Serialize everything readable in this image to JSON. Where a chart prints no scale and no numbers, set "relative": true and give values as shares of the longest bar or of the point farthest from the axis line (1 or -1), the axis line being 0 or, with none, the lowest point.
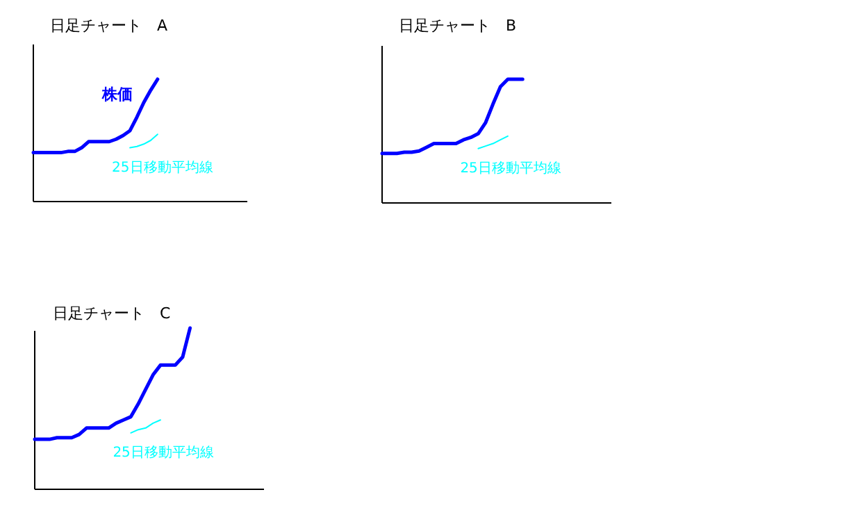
{
  "chart_data": [
    {
      "type": "line",
      "title": "日足チャート　A",
      "relative": true,
      "categories": [
        null,
        null,
        null,
        null,
        null,
        null,
        null,
        null,
        null,
        null,
        null,
        null,
        null,
        null,
        null,
        null,
        null,
        null,
        null,
        null,
        null,
        null,
        null,
        null,
        null,
        null,
        null,
        null,
        null,
        null,
        null,
        null
      ],
      "series": [
        {
          "name": "株価",
          "color": "#0000ff",
          "values": [
            0.4,
            0.4,
            0.4,
            0.4,
            0.4,
            0.41,
            0.41,
            0.44,
            0.49,
            0.49,
            0.49,
            0.49,
            0.51,
            0.54,
            0.58,
            0.69,
            0.81,
            0.91,
            1,
            null,
            null,
            null,
            null,
            null,
            null,
            null,
            null,
            null,
            null,
            null,
            null,
            null
          ]
        },
        {
          "name": "25日移動平均線",
          "color": "#00ffff",
          "values": [
            null,
            null,
            null,
            null,
            null,
            null,
            null,
            null,
            null,
            null,
            null,
            null,
            null,
            null,
            0.44,
            0.45,
            0.47,
            0.5,
            0.55,
            null,
            null,
            null,
            null,
            null,
            null,
            null,
            null,
            null,
            null,
            null,
            null,
            null
          ]
        }
      ]
    },
    {
      "type": "line",
      "title": "日足チャート　B",
      "relative": true,
      "categories": [
        null,
        null,
        null,
        null,
        null,
        null,
        null,
        null,
        null,
        null,
        null,
        null,
        null,
        null,
        null,
        null,
        null,
        null,
        null,
        null,
        null,
        null,
        null,
        null,
        null,
        null,
        null,
        null,
        null,
        null,
        null,
        null
      ],
      "series": [
        {
          "color": "#0000ff",
          "values": [
            0.4,
            0.4,
            0.4,
            0.41,
            0.41,
            0.42,
            0.45,
            0.48,
            0.48,
            0.48,
            0.48,
            0.51,
            0.53,
            0.56,
            0.65,
            0.8,
            0.94,
            1,
            1,
            1,
            null,
            null,
            null,
            null,
            null,
            null,
            null,
            null,
            null,
            null,
            null,
            null
          ]
        },
        {
          "name": "25日移動平均線",
          "color": "#00ffff",
          "values": [
            null,
            null,
            null,
            null,
            null,
            null,
            null,
            null,
            null,
            null,
            null,
            null,
            null,
            0.44,
            0.46,
            0.48,
            0.51,
            0.54,
            null,
            null,
            null,
            null,
            null,
            null,
            null,
            null,
            null,
            null,
            null,
            null,
            null,
            null
          ]
        }
      ]
    },
    {
      "type": "line",
      "title": "日足チャート　C",
      "relative": true,
      "categories": [
        null,
        null,
        null,
        null,
        null,
        null,
        null,
        null,
        null,
        null,
        null,
        null,
        null,
        null,
        null,
        null,
        null,
        null,
        null,
        null,
        null,
        null,
        null,
        null,
        null,
        null,
        null,
        null,
        null,
        null,
        null,
        null
      ],
      "series": [
        {
          "color": "#0000ff",
          "values": [
            0.31,
            0.31,
            0.31,
            0.32,
            0.32,
            0.32,
            0.34,
            0.38,
            0.38,
            0.38,
            0.38,
            0.41,
            0.43,
            0.45,
            0.53,
            0.62,
            0.71,
            0.77,
            0.77,
            0.77,
            0.82,
            1,
            null,
            null,
            null,
            null,
            null,
            null,
            null,
            null,
            null,
            null
          ]
        },
        {
          "name": "25日移動平均線",
          "color": "#00ffff",
          "values": [
            null,
            null,
            null,
            null,
            null,
            null,
            null,
            null,
            null,
            null,
            null,
            null,
            null,
            0.35,
            0.37,
            0.38,
            0.41,
            0.43,
            null,
            null,
            null,
            null,
            null,
            null,
            null,
            null,
            null,
            null,
            null,
            null,
            null,
            null
          ]
        }
      ]
    }
  ]
}
